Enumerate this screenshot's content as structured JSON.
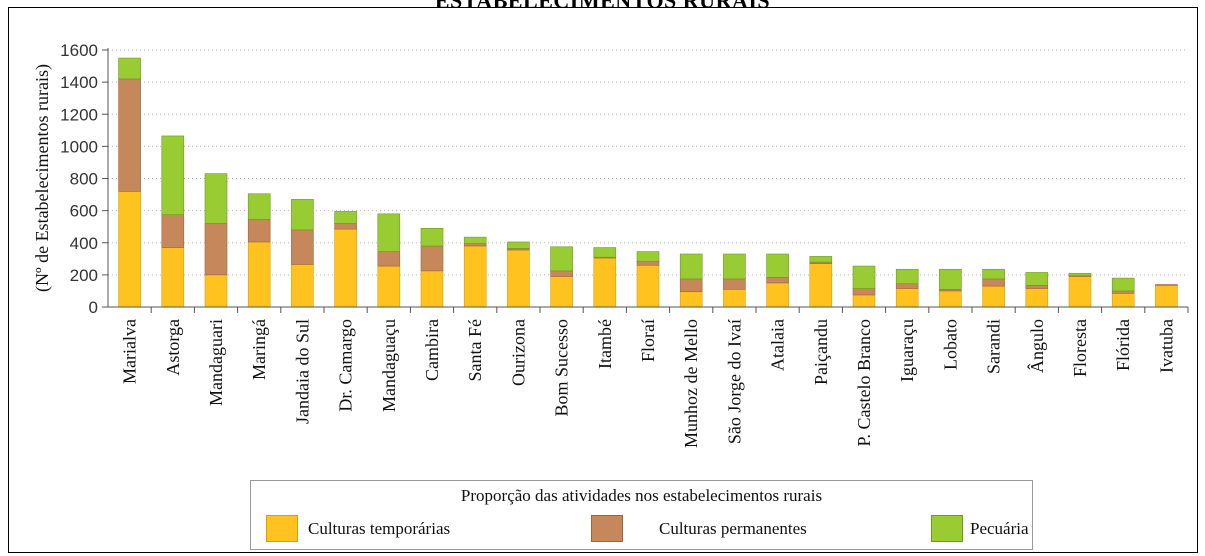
{
  "title": "ESTABELECIMENTOS RURAIS",
  "legend": {
    "title": "Proporção  das atividades nos estabelecimentos rurais",
    "items": [
      {
        "label": "Culturas temporárias",
        "color": "#FFC21F"
      },
      {
        "label": "Culturas permanentes",
        "color": "#C6875A"
      },
      {
        "label": "Pecuária",
        "color": "#99CC33"
      }
    ]
  },
  "chart_data": {
    "type": "bar",
    "stacked": true,
    "title": "ESTABELECIMENTOS RURAIS",
    "xlabel": "",
    "ylabel": "(Nº de Estabelecimentos rurais)",
    "ylim": [
      0,
      1600
    ],
    "yticks": [
      0,
      200,
      400,
      600,
      800,
      1000,
      1200,
      1400,
      1600
    ],
    "grid": true,
    "legend_position": "bottom",
    "categories": [
      "Marialva",
      "Astorga",
      "Mandaguari",
      "Maringá",
      "Jandaia do Sul",
      "Dr. Camargo",
      "Mandaguaçu",
      "Cambira",
      "Santa Fé",
      "Ourizona",
      "Bom Sucesso",
      "Itambé",
      "Floraí",
      "Munhoz de Mello",
      "São Jorge do Ivaí",
      "Atalaia",
      "Paiçandu",
      "P. Castelo Branco",
      "Iguaraçu",
      "Lobato",
      "Sarandi",
      "Ângulo",
      "Floresta",
      "Flórida",
      "Ivatuba"
    ],
    "series": [
      {
        "name": "Culturas temporárias",
        "color": "#FFC21F",
        "values": [
          720,
          370,
          200,
          405,
          265,
          485,
          255,
          225,
          380,
          355,
          190,
          305,
          260,
          95,
          110,
          150,
          270,
          75,
          115,
          100,
          130,
          115,
          190,
          85,
          135
        ]
      },
      {
        "name": "Culturas permanentes",
        "color": "#C6875A",
        "values": [
          700,
          205,
          320,
          140,
          215,
          35,
          90,
          155,
          15,
          10,
          35,
          5,
          25,
          80,
          65,
          35,
          10,
          40,
          30,
          10,
          45,
          20,
          5,
          15,
          5
        ]
      },
      {
        "name": "Pecuária",
        "color": "#99CC33",
        "values": [
          130,
          490,
          310,
          160,
          190,
          75,
          235,
          110,
          40,
          40,
          150,
          60,
          60,
          155,
          155,
          145,
          35,
          140,
          90,
          125,
          60,
          80,
          15,
          80,
          0
        ]
      }
    ]
  }
}
